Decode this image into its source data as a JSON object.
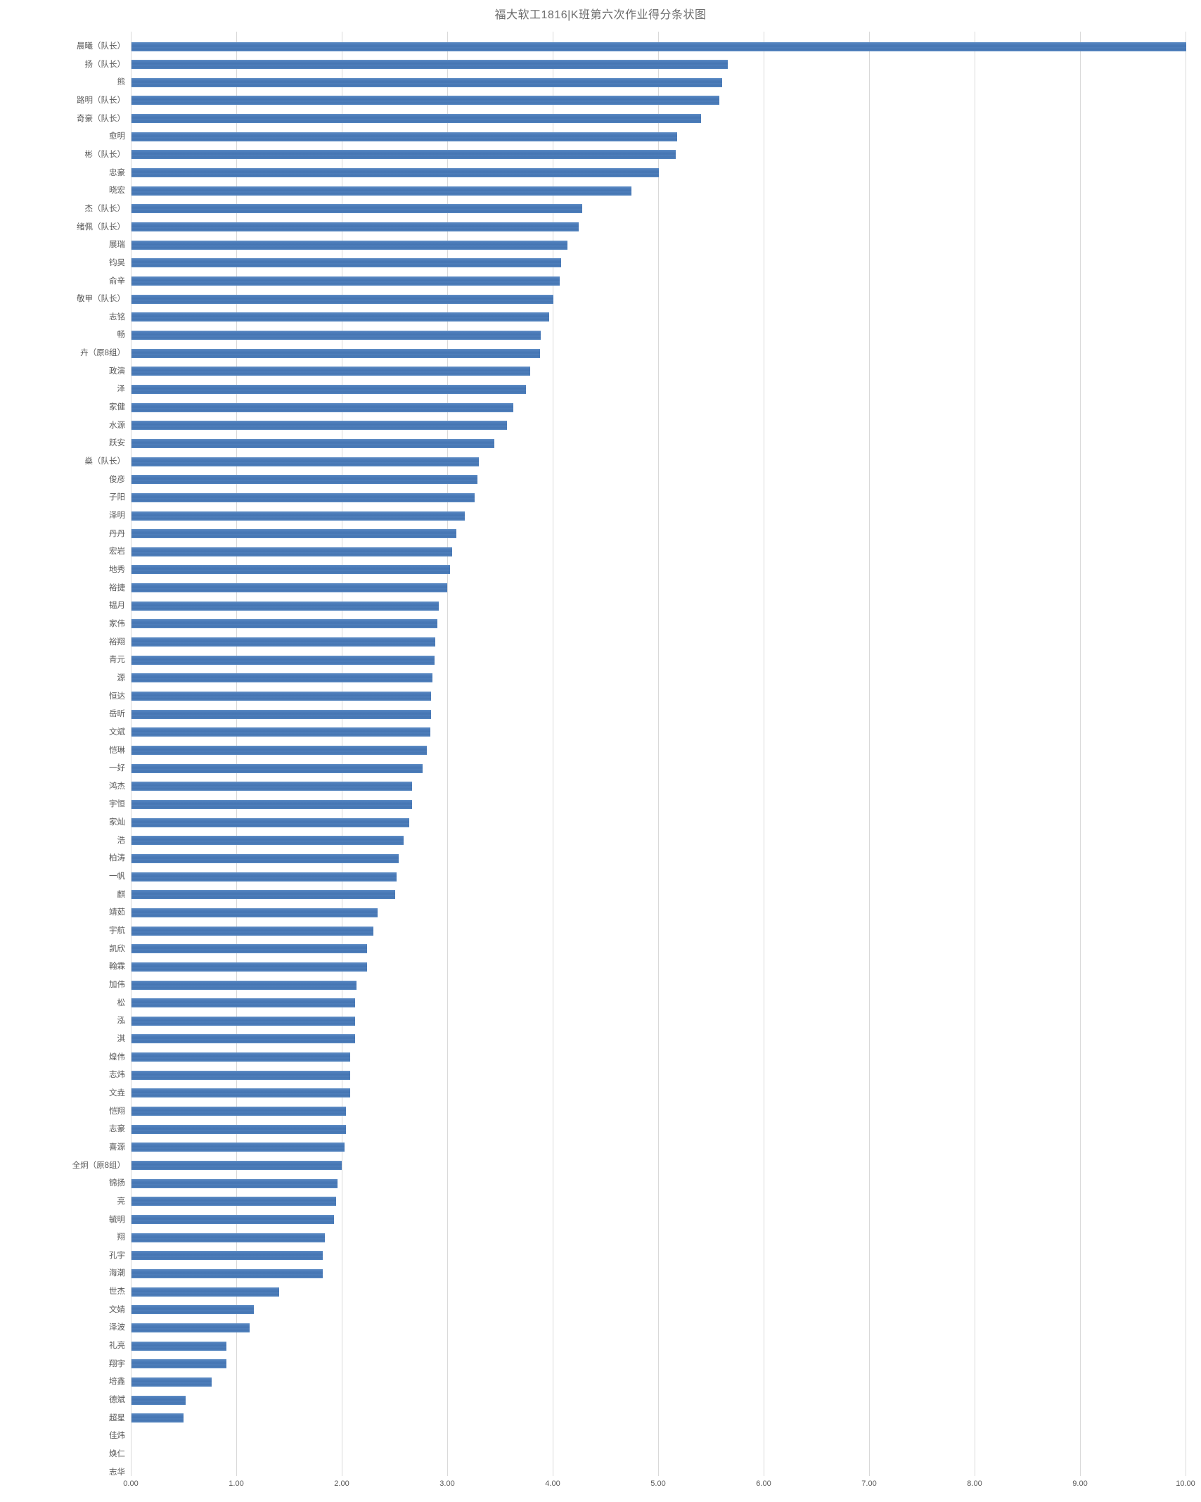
{
  "page": {
    "title": "福大软工1816|K班第六次作业得分条状图"
  },
  "chart_data": {
    "type": "bar",
    "orientation": "horizontal",
    "title": "福大软工1816|K班第六次作业得分条状图",
    "xlabel": "",
    "ylabel": "",
    "xlim": [
      0,
      10
    ],
    "x_ticks": [
      "0.00",
      "1.00",
      "2.00",
      "3.00",
      "4.00",
      "5.00",
      "6.00",
      "7.00",
      "8.00",
      "9.00",
      "10.00"
    ],
    "grid": true,
    "legend": "none",
    "sort_order": "descending",
    "bar_color": "#4E7EBB",
    "text_color": "#595959",
    "grid_color": "#D9D9D9",
    "categories": [
      "晨曦（队长）",
      "扬（队长）",
      "熊",
      "路明（队长）",
      "奇豪（队长）",
      "愈明",
      "彬（队长）",
      "忠豪",
      "晓宏",
      "杰（队长）",
      "绪佩（队长）",
      "展瑞",
      "钧昊",
      "俞辛",
      "敬甲（队长）",
      "志铭",
      "畅",
      "卉（原8组）",
      "政演",
      "泽",
      "家健",
      "水源",
      "跃安",
      "燊（队长）",
      "俊彦",
      "子阳",
      "泽明",
      "丹丹",
      "宏岩",
      "地秀",
      "裕捷",
      "韫月",
      "家伟",
      "裕翔",
      "青元",
      "源",
      "恒达",
      "岳昕",
      "文斌",
      "恺琳",
      "一好",
      "鸿杰",
      "宇恒",
      "家灿",
      "浩",
      "柏涛",
      "一帆",
      "麒",
      "靖茹",
      "宇航",
      "凯欣",
      "翰霖",
      "加伟",
      "松",
      "泓",
      "淇",
      "煌伟",
      "志炜",
      "文垚",
      "恺翔",
      "志豪",
      "喜源",
      "全炯（原8组）",
      "锦扬",
      "亮",
      "毓明",
      "翔",
      "孔宇",
      "海潮",
      "世杰",
      "文婧",
      "泽波",
      "礼亮",
      "翔宇",
      "培鑫",
      "德斌",
      "超星",
      "佳炜",
      "焕仁",
      "志华"
    ],
    "values": [
      10.0,
      5.65,
      5.6,
      5.57,
      5.4,
      5.17,
      5.16,
      5.0,
      4.74,
      4.27,
      4.24,
      4.13,
      4.07,
      4.06,
      4.0,
      3.96,
      3.88,
      3.87,
      3.78,
      3.74,
      3.62,
      3.56,
      3.44,
      3.29,
      3.28,
      3.25,
      3.16,
      3.08,
      3.04,
      3.02,
      2.99,
      2.91,
      2.9,
      2.88,
      2.87,
      2.85,
      2.84,
      2.84,
      2.83,
      2.8,
      2.76,
      2.66,
      2.66,
      2.63,
      2.58,
      2.53,
      2.51,
      2.5,
      2.33,
      2.29,
      2.23,
      2.23,
      2.13,
      2.12,
      2.12,
      2.12,
      2.07,
      2.07,
      2.07,
      2.03,
      2.03,
      2.02,
      1.99,
      1.95,
      1.94,
      1.92,
      1.83,
      1.81,
      1.81,
      1.4,
      1.16,
      1.12,
      0.9,
      0.9,
      0.76,
      0.51,
      0.49,
      0.0,
      0.0,
      0.0
    ]
  }
}
